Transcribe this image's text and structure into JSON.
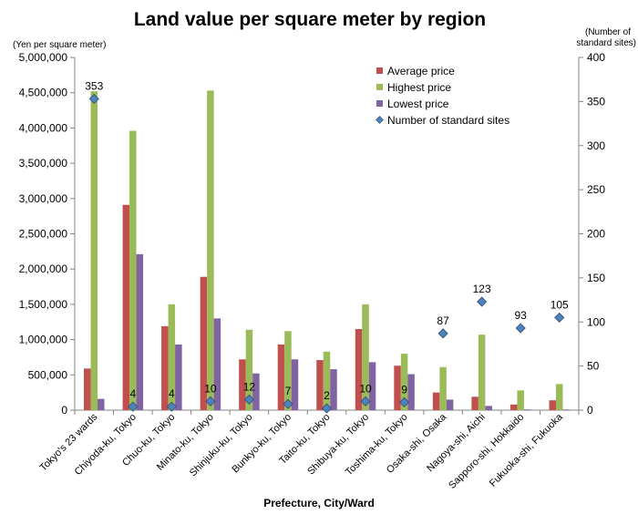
{
  "chart_data": {
    "type": "bar",
    "title": "Land value per square meter by region",
    "xlabel": "Prefecture, City/Ward",
    "ylabel": "(Yen per square meter)",
    "y2label_line1": "(Number of",
    "y2label_line2": "standard sites)",
    "ylim": [
      0,
      5000000
    ],
    "y2lim": [
      0,
      400
    ],
    "yticks": [
      "0",
      "500,000",
      "1,000,000",
      "1,500,000",
      "2,000,000",
      "2,500,000",
      "3,000,000",
      "3,500,000",
      "4,000,000",
      "4,500,000",
      "5,000,000"
    ],
    "y2ticks": [
      "0",
      "50",
      "100",
      "150",
      "200",
      "250",
      "300",
      "350",
      "400"
    ],
    "categories": [
      "Tokyo's 23 wards",
      "Chiyoda-ku, Tokyo",
      "Chuo-ku, Tokyo",
      "Minato-ku, Tokyo",
      "Shinjuku-ku, Tokyo",
      "Bunkyo-ku, Tokyo",
      "Taito-ku, Tokyo",
      "Shibuya-ku, Tokyo",
      "Toshima-ku, Tokyo",
      "Osaka-shi, Osaka",
      "Nagoya-shi, Aichi",
      "Sapporo-shi, Hokkaido",
      "Fukuoka-shi, Fukuoka"
    ],
    "series": [
      {
        "name": "Average price",
        "type": "bar",
        "axis": "left",
        "color": "#c0504d",
        "values": [
          590000,
          2910000,
          1190000,
          1890000,
          720000,
          930000,
          710000,
          1150000,
          630000,
          250000,
          190000,
          80000,
          140000
        ]
      },
      {
        "name": "Highest price",
        "type": "bar",
        "axis": "left",
        "color": "#9bbb59",
        "values": [
          4520000,
          3960000,
          1500000,
          4530000,
          1140000,
          1120000,
          830000,
          1500000,
          800000,
          610000,
          1070000,
          280000,
          370000
        ]
      },
      {
        "name": "Lowest price",
        "type": "bar",
        "axis": "left",
        "color": "#8064a2",
        "values": [
          160000,
          2210000,
          930000,
          1300000,
          520000,
          720000,
          580000,
          680000,
          510000,
          150000,
          60000,
          10000,
          10000
        ]
      },
      {
        "name": "Number of standard sites",
        "type": "scatter",
        "axis": "right",
        "color": "#4f81bd",
        "values": [
          353,
          4,
          4,
          10,
          12,
          7,
          2,
          10,
          9,
          87,
          123,
          93,
          105
        ],
        "labels": [
          "353",
          "4",
          "4",
          "10",
          "12",
          "7",
          "2",
          "10",
          "9",
          "87",
          "123",
          "93",
          "105"
        ]
      }
    ],
    "grid": false,
    "legend": "top-right"
  }
}
